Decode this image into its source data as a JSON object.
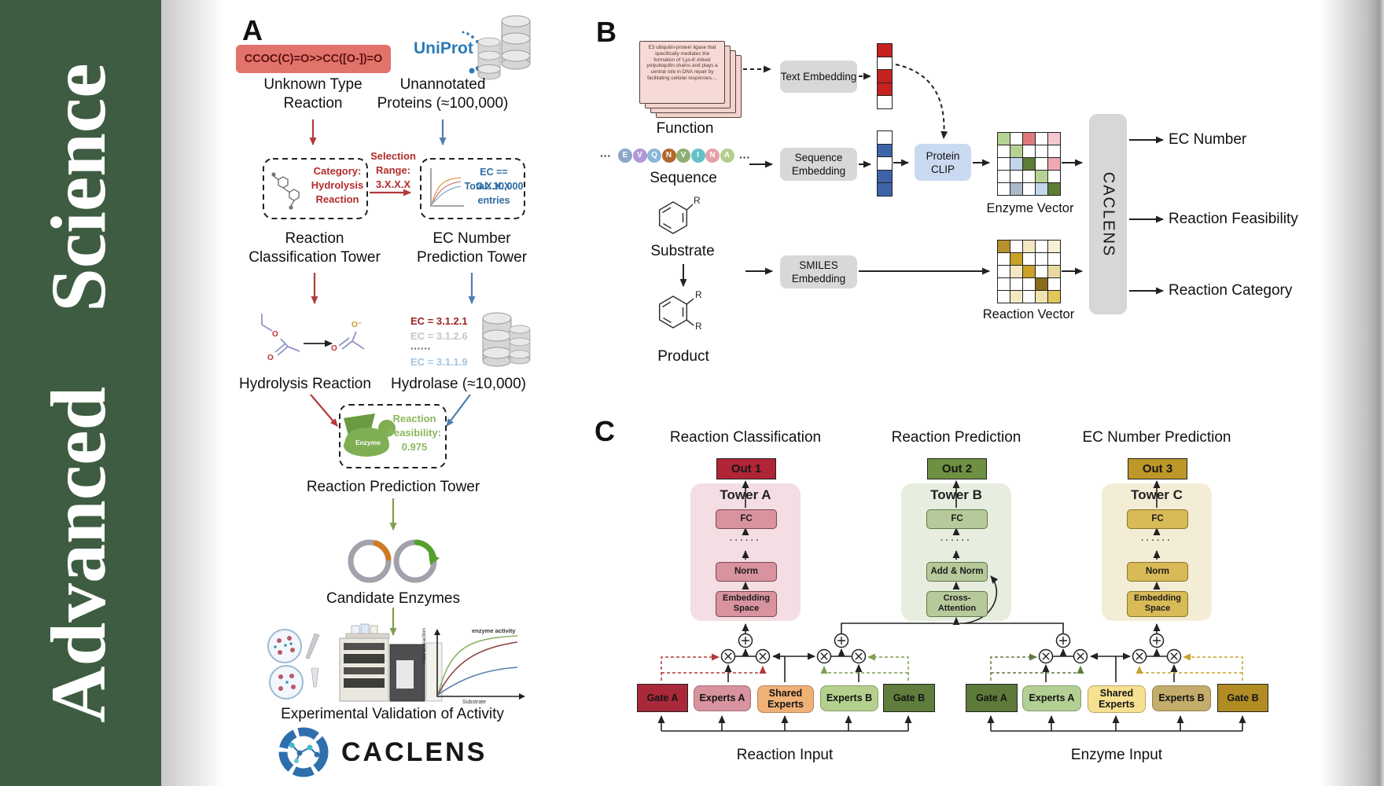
{
  "banner": {
    "journal_title": "Advanced  Science"
  },
  "panel_a": {
    "label": "A",
    "smiles": "CCOC(C)=O>>CC([O-])=O",
    "unknown_reaction_label": "Unknown Type Reaction",
    "uniprot_logo": "UniProt",
    "unannotated_label": "Unannotated Proteins (≈100,000)",
    "category_text": "Category: Hydrolysis Reaction",
    "selection_text": "Selection Range: 3.X.X.X",
    "ec_filter_lines": [
      "EC == 3.X.X.X",
      "Total: 10,000",
      "entries"
    ],
    "classification_tower_lines": [
      "Reaction",
      "Classification Tower"
    ],
    "ec_tower_lines": [
      "EC Number",
      "Prediction Tower"
    ],
    "hydrolysis_label": "Hydrolysis Reaction",
    "atoms": {
      "o": "O",
      "o_minus": "O⁻"
    },
    "ec_candidates": [
      "EC = 3.1.2.1",
      "EC = 3.1.2.6",
      "······",
      "EC = 3.1.1.9"
    ],
    "hydrolase_label": "Hydrolase (≈10,000)",
    "enzyme_icon_label": "Enzyme",
    "feasibility_text": "Reaction Feasibility: 0.975",
    "prediction_tower_label": "Reaction Prediction Tower",
    "candidates_label": "Candidate Enzymes",
    "activity_plot": {
      "ylabel": "Rate of reaction",
      "xlabel": "Substrate",
      "annotation": "enzyme activity"
    },
    "validation_label": "Experimental Validation of Activity",
    "brand": "CACLENS"
  },
  "panel_b": {
    "label": "B",
    "function_card_text": "E3 ubiquitin-protein ligase that specifically mediates the formation of 'Lys-6'-linked polyubiquitin chains and plays a central role in DNA repair by facilitating cellular responses....",
    "function_label": "Function",
    "ellipsis": "···",
    "sequence": {
      "residues": [
        "E",
        "V",
        "Q",
        "N",
        "V",
        "I",
        "N",
        "A"
      ],
      "colors": [
        "#8ca7c5",
        "#b197d6",
        "#8ab7d8",
        "#b06a2d",
        "#8fae72",
        "#64c0c8",
        "#e4a0aa",
        "#b3cd8c"
      ]
    },
    "sequence_label": "Sequence",
    "substituent": "R",
    "substrate_label": "Substrate",
    "product_label": "Product",
    "text_embedding": "Text Embedding",
    "sequence_embedding": "Sequence Embedding",
    "smiles_embedding": "SMILES Embedding",
    "protein_clip": "Protein CLIP",
    "text_vector": [
      "#c62121",
      "#ffffff",
      "#c62121",
      "#c62121",
      "#ffffff"
    ],
    "sequence_vector": [
      "#ffffff",
      "#3e63a9",
      "#ffffff",
      "#3e63a9",
      "#3e63a9"
    ],
    "enzyme_vector": {
      "label": "Enzyme Vector",
      "cells": [
        [
          "#b7d394",
          "#ffffff",
          "#e0797c",
          "#ffffff",
          "#f3c8ce"
        ],
        [
          "#ffffff",
          "#b7d394",
          "#ffffff",
          "#ffffff",
          "#ffffff"
        ],
        [
          "#ffffff",
          "#c3d6ea",
          "#5d7c35",
          "#ffffff",
          "#efa9b2"
        ],
        [
          "#ffffff",
          "#ffffff",
          "#ffffff",
          "#b7d394",
          "#ffffff"
        ],
        [
          "#ffffff",
          "#a9bac9",
          "#ffffff",
          "#c3d6ea",
          "#5d7c35"
        ]
      ]
    },
    "reaction_vector": {
      "label": "Reaction Vector",
      "cells": [
        [
          "#b8922a",
          "#ffffff",
          "#f3e8c2",
          "#ffffff",
          "#f8f0d5"
        ],
        [
          "#ffffff",
          "#c9a227",
          "#ffffff",
          "#ffffff",
          "#ffffff"
        ],
        [
          "#ffffff",
          "#f3e8c2",
          "#c9a227",
          "#ffffff",
          "#e8d9a0"
        ],
        [
          "#ffffff",
          "#ffffff",
          "#ffffff",
          "#8a6d1a",
          "#ffffff"
        ],
        [
          "#ffffff",
          "#f3e8c2",
          "#ffffff",
          "#f0e3b0",
          "#e2c658"
        ]
      ]
    },
    "caclens_module": "CACLENS",
    "outputs": [
      "EC Number",
      "Reaction Feasibility",
      "Reaction Category"
    ]
  },
  "panel_c": {
    "label": "C",
    "columns": [
      {
        "heading": "Reaction Classification",
        "out": "Out 1",
        "tower": "Tower A",
        "fc": "FC",
        "dots": "······",
        "mid": "Norm",
        "bottom": "Embedding Space"
      },
      {
        "heading": "Reaction Prediction",
        "out": "Out 2",
        "tower": "Tower B",
        "fc": "FC",
        "dots": "······",
        "mid": "Add & Norm",
        "bottom": "Cross-Attention"
      },
      {
        "heading": "EC Number Prediction",
        "out": "Out 3",
        "tower": "Tower C",
        "fc": "FC",
        "dots": "······",
        "mid": "Norm",
        "bottom": "Embedding Space"
      }
    ],
    "groups": [
      {
        "gate_a": "Gate A",
        "experts_a": "Experts A",
        "shared": "Shared Experts",
        "experts_b": "Experts B",
        "gate_b": "Gate B",
        "input_label": "Reaction Input"
      },
      {
        "gate_a": "Gate A",
        "experts_a": "Experts A",
        "shared": "Shared Experts",
        "experts_b": "Experts B",
        "gate_b": "Gate B",
        "input_label": "Enzyme Input"
      }
    ]
  },
  "colors": {
    "banner_green": "#3e5c41",
    "uniprot_blue": "#2a7ab8",
    "arrow_red": "#b23a3a",
    "arrow_blue": "#4d7fb0",
    "arrow_green": "#7f9e52",
    "gate_a_reaction": "#a9293a",
    "gate_b_reaction": "#5f7d3c",
    "gate_a_enzyme": "#5d7a3b",
    "gate_b_enzyme": "#b08c22"
  }
}
